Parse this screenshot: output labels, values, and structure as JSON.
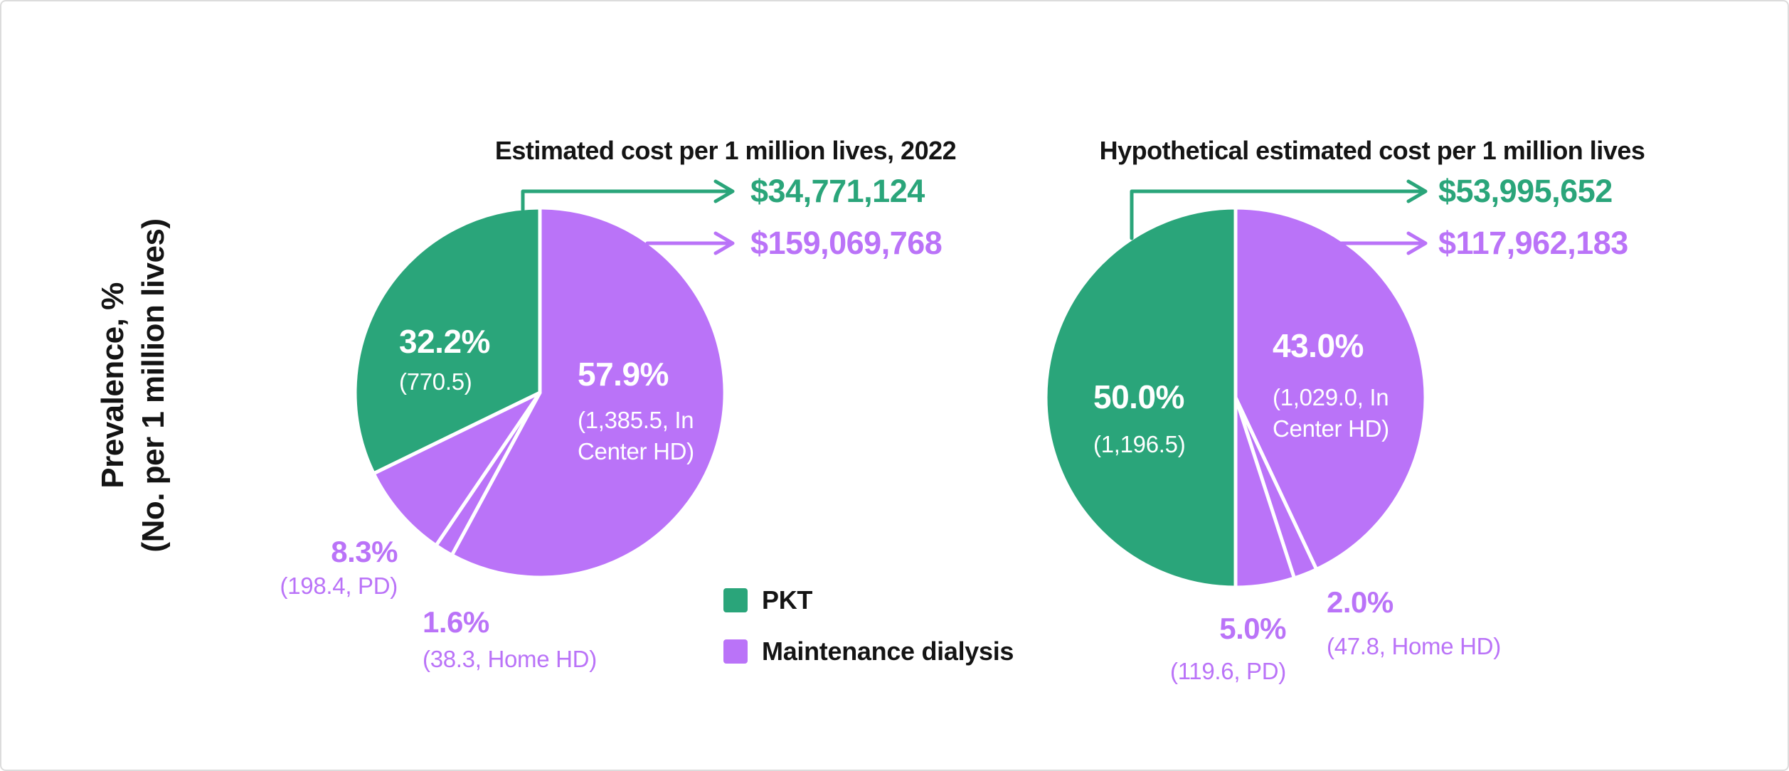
{
  "figure": {
    "y_axis_label_line1": "Prevalence, %",
    "y_axis_label_line2": "(No. per 1 million lives)"
  },
  "colors": {
    "pkt_green": "#2AA57A",
    "dialysis_purple": "#BA73F8",
    "text_dark": "#141414"
  },
  "legend": {
    "items": [
      {
        "label": "PKT",
        "color": "#2AA57A"
      },
      {
        "label": "Maintenance dialysis",
        "color": "#BA73F8"
      }
    ]
  },
  "charts": [
    {
      "title": "Estimated cost per 1 million lives, 2022",
      "pkt_cost": "$34,771,124",
      "dialysis_cost": "$159,069,768",
      "labels": {
        "pkt_pct": "32.2%",
        "pkt_sub": "(770.5)",
        "in_center_pct": "57.9%",
        "in_center_sub1": "(1,385.5, In",
        "in_center_sub2": "Center HD)",
        "pd_pct": "8.3%",
        "pd_sub": "(198.4, PD)",
        "home_hd_pct": "1.6%",
        "home_hd_sub": "(38.3, Home HD)"
      }
    },
    {
      "title": "Hypothetical estimated cost per 1 million lives",
      "pkt_cost": "$53,995,652",
      "dialysis_cost": "$117,962,183",
      "labels": {
        "pkt_pct": "50.0%",
        "pkt_sub": "(1,196.5)",
        "in_center_pct": "43.0%",
        "in_center_sub1": "(1,029.0, In",
        "in_center_sub2": "Center HD)",
        "pd_pct": "5.0%",
        "pd_sub": "(119.6, PD)",
        "home_hd_pct": "2.0%",
        "home_hd_sub": "(47.8, Home HD)"
      }
    }
  ],
  "chart_data": [
    {
      "type": "pie",
      "title": "Estimated cost per 1 million lives, 2022",
      "ylabel": "Prevalence, % (No. per 1 million lives)",
      "direction": "clockwise-from-top",
      "slices": [
        {
          "name": "Maintenance dialysis - In Center HD",
          "pct": 57.9,
          "prevalence_per_million": 1385.5,
          "color": "#BA73F8"
        },
        {
          "name": "Maintenance dialysis - Home HD",
          "pct": 1.6,
          "prevalence_per_million": 38.3,
          "color": "#BA73F8"
        },
        {
          "name": "Maintenance dialysis - PD",
          "pct": 8.3,
          "prevalence_per_million": 198.4,
          "color": "#BA73F8"
        },
        {
          "name": "PKT",
          "pct": 32.2,
          "prevalence_per_million": 770.5,
          "color": "#2AA57A"
        }
      ],
      "annotations": [
        {
          "series": "PKT",
          "text": "$34,771,124",
          "color": "#2AA57A"
        },
        {
          "series": "Maintenance dialysis",
          "text": "$159,069,768",
          "color": "#BA73F8"
        }
      ]
    },
    {
      "type": "pie",
      "title": "Hypothetical estimated cost per 1 million lives",
      "ylabel": "Prevalence, % (No. per 1 million lives)",
      "direction": "clockwise-from-top",
      "slices": [
        {
          "name": "Maintenance dialysis - In Center HD",
          "pct": 43.0,
          "prevalence_per_million": 1029.0,
          "color": "#BA73F8"
        },
        {
          "name": "Maintenance dialysis - Home HD",
          "pct": 2.0,
          "prevalence_per_million": 47.8,
          "color": "#BA73F8"
        },
        {
          "name": "Maintenance dialysis - PD",
          "pct": 5.0,
          "prevalence_per_million": 119.6,
          "color": "#BA73F8"
        },
        {
          "name": "PKT",
          "pct": 50.0,
          "prevalence_per_million": 1196.5,
          "color": "#2AA57A"
        }
      ],
      "annotations": [
        {
          "series": "PKT",
          "text": "$53,995,652",
          "color": "#2AA57A"
        },
        {
          "series": "Maintenance dialysis",
          "text": "$117,962,183",
          "color": "#BA73F8"
        }
      ]
    }
  ]
}
